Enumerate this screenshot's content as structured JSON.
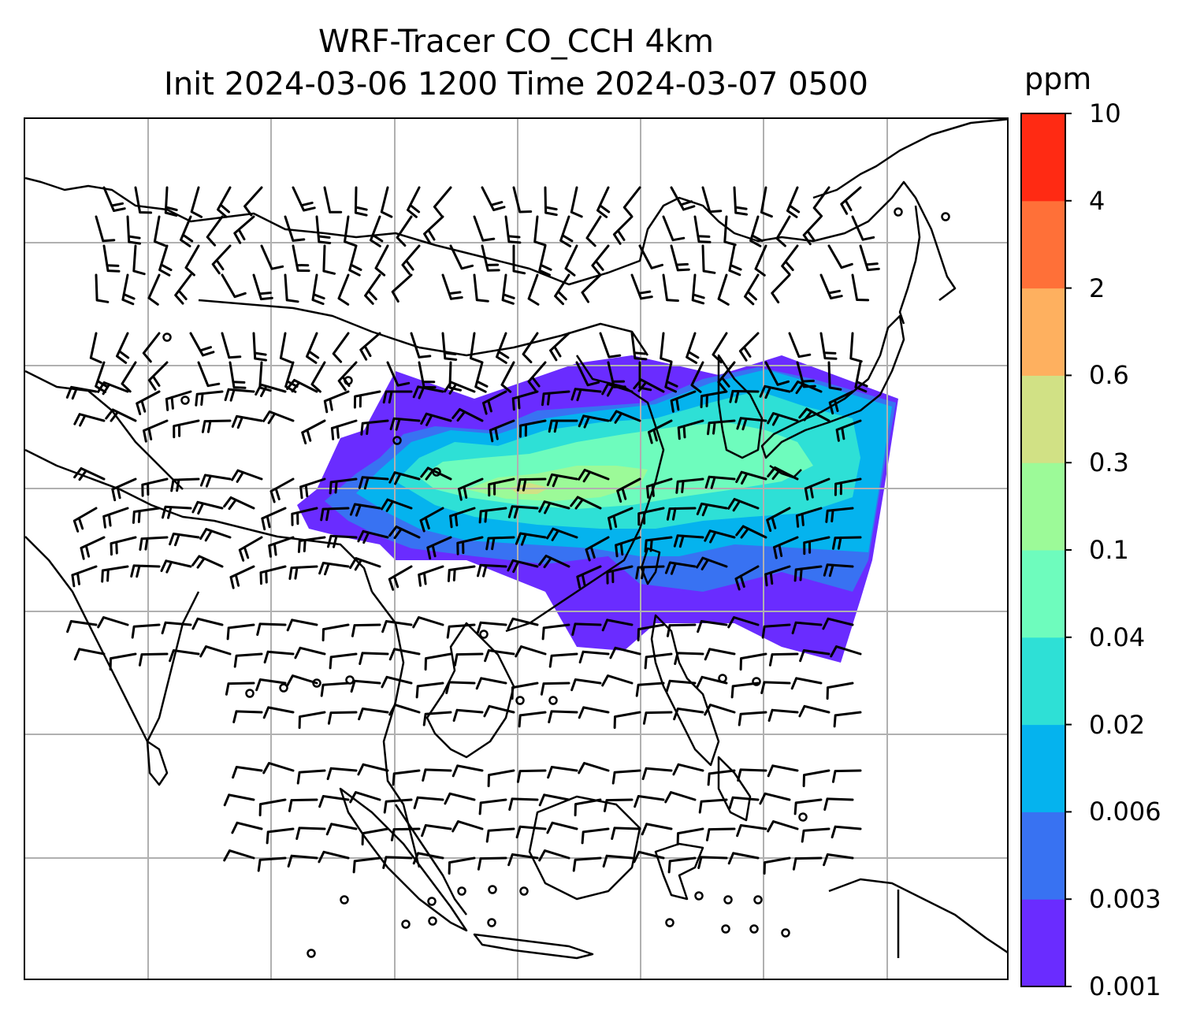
{
  "title": {
    "line1": "WRF-Tracer CO_CCH 4km",
    "line2": "Init 2024-03-06 1200 Time 2024-03-07 0500"
  },
  "colorbar": {
    "unit": "ppm",
    "levels": [
      "0.001",
      "0.003",
      "0.006",
      "0.02",
      "0.04",
      "0.1",
      "0.3",
      "0.6",
      "2",
      "4",
      "10"
    ],
    "colors": [
      "#6a2cff",
      "#3872f2",
      "#05b3ee",
      "#2ee0d6",
      "#6efcbd",
      "#9cfa98",
      "#d1e185",
      "#feb05f",
      "#ff7038",
      "#ff2a13"
    ]
  },
  "map": {
    "gridline_color": "#b0b0b0",
    "coastline_color": "#000000",
    "barb_color": "#000000",
    "icons": [
      "coastline",
      "wind-barb",
      "calm-circle",
      "gridline"
    ]
  }
}
